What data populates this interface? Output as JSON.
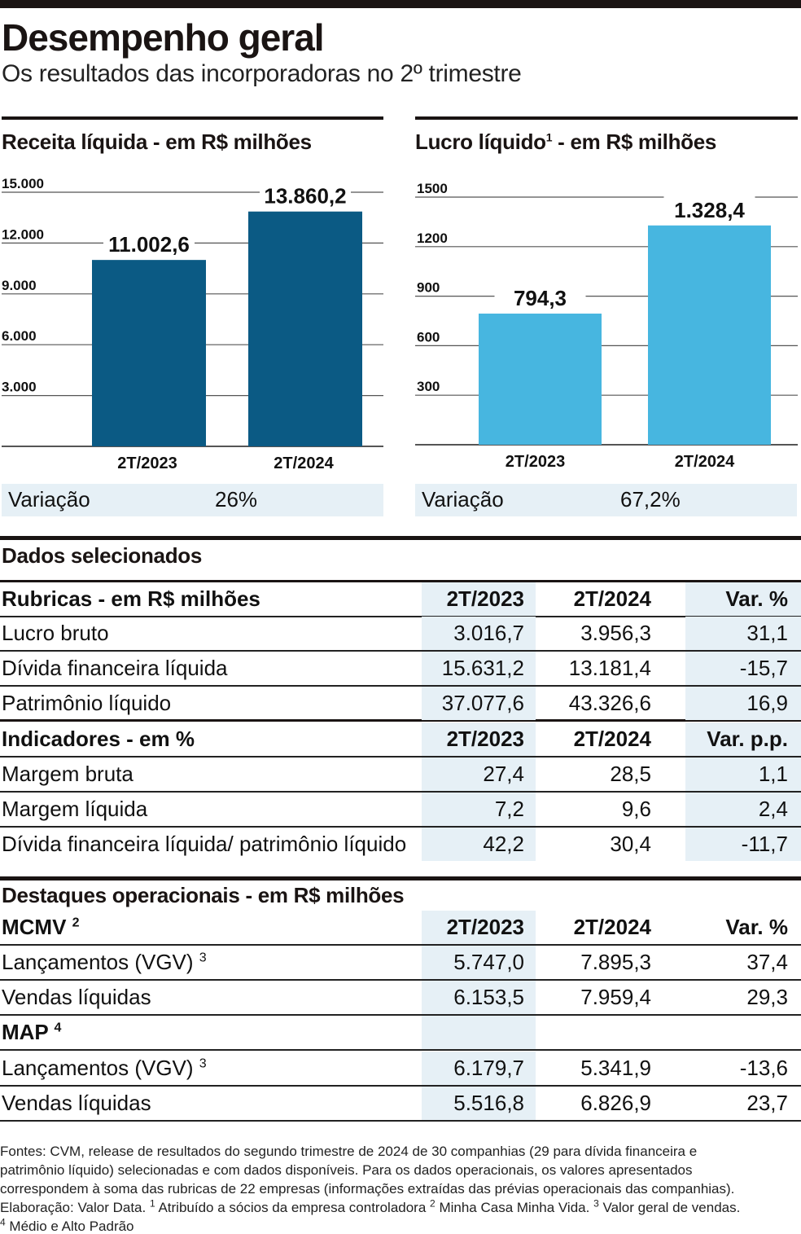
{
  "header": {
    "title": "Desempenho geral",
    "subtitle": "Os resultados das incorporadoras no 2º trimestre"
  },
  "chart_data": [
    {
      "type": "bar",
      "title": "Receita líquida - em R$ milhões",
      "categories": [
        "2T/2023",
        "2T/2024"
      ],
      "values": [
        11002.6,
        13860.2
      ],
      "value_labels": [
        "11.002,6",
        "13.860,2"
      ],
      "yticks": [
        3000,
        6000,
        9000,
        12000,
        15000
      ],
      "ytick_labels": [
        "3.000",
        "6.000",
        "9.000",
        "12.000",
        "15.000"
      ],
      "ylim": [
        0,
        15000
      ],
      "grid": true,
      "color": "#0b5a84",
      "variacao_label": "Variação",
      "variacao_value": "26%"
    },
    {
      "type": "bar",
      "title": "Lucro líquido",
      "title_sup": "1",
      "title_suffix": " - em R$ milhões",
      "categories": [
        "2T/2023",
        "2T/2024"
      ],
      "values": [
        794.3,
        1328.4
      ],
      "value_labels": [
        "794,3",
        "1.328,4"
      ],
      "yticks": [
        300,
        600,
        900,
        1200,
        1500
      ],
      "ytick_labels": [
        "300",
        "600",
        "900",
        "1200",
        "1500"
      ],
      "ylim": [
        0,
        1500
      ],
      "grid": true,
      "color": "#47b6e0",
      "variacao_label": "Variação",
      "variacao_value": "67,2%"
    }
  ],
  "dados": {
    "section_title": "Dados selecionados",
    "rubricas": {
      "header": [
        "Rubricas - em R$ milhões",
        "2T/2023",
        "2T/2024",
        "Var. %"
      ],
      "rows": [
        [
          "Lucro bruto",
          "3.016,7",
          "3.956,3",
          "31,1"
        ],
        [
          "Dívida financeira líquida",
          "15.631,2",
          "13.181,4",
          "-15,7"
        ],
        [
          "Patrimônio líquido",
          "37.077,6",
          "43.326,6",
          "16,9"
        ]
      ]
    },
    "indicadores": {
      "header": [
        "Indicadores - em %",
        "2T/2023",
        "2T/2024",
        "Var. p.p."
      ],
      "rows": [
        [
          "Margem bruta",
          "27,4",
          "28,5",
          "1,1"
        ],
        [
          "Margem líquida",
          "7,2",
          "9,6",
          "2,4"
        ],
        [
          "Dívida financeira líquida/ patrimônio líquido",
          "42,2",
          "30,4",
          "-11,7"
        ]
      ]
    }
  },
  "destaques": {
    "section_title": "Destaques operacionais - em R$ milhões",
    "mcmv": {
      "label": "MCMV",
      "sup": "2",
      "header": [
        "2T/2023",
        "2T/2024",
        "Var. %"
      ],
      "rows": [
        [
          "Lançamentos (VGV)",
          "3",
          "5.747,0",
          "7.895,3",
          "37,4"
        ],
        [
          "Vendas líquidas",
          "",
          "6.153,5",
          "7.959,4",
          "29,3"
        ]
      ]
    },
    "map": {
      "label": "MAP",
      "sup": "4",
      "rows": [
        [
          "Lançamentos (VGV)",
          "3",
          "6.179,7",
          "5.341,9",
          "-13,6"
        ],
        [
          "Vendas líquidas",
          "",
          "5.516,8",
          "6.826,9",
          "23,7"
        ]
      ]
    }
  },
  "footer": {
    "line1": "Fontes: CVM, release de resultados do segundo trimestre de 2024 de 30 companhias (29 para dívida financeira e",
    "line2": "patrimônio líquido) selecionadas e com dados disponíveis. Para os dados operacionais, os valores apresentados",
    "line3": "correspondem à soma das rubricas de 22 empresas (informações extraídas das prévias operacionais das companhias).",
    "line4a": "Elaboração: Valor Data. ",
    "sup1": "1",
    "line4b": " Atribuído a sócios da empresa controladora ",
    "sup2": "2",
    "line4c": " Minha Casa Minha Vida. ",
    "sup3": "3",
    "line4d": " Valor geral de vendas.",
    "sup4": "4",
    "line5": " Médio e Alto Padrão"
  }
}
